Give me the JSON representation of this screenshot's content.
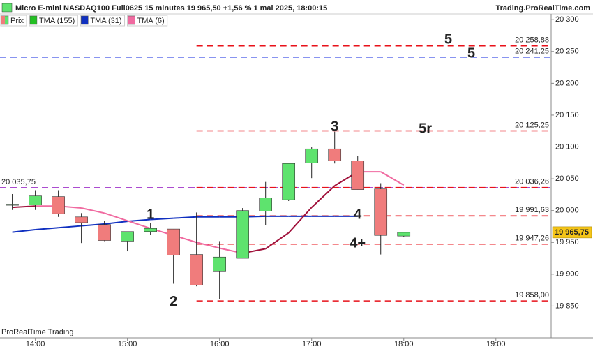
{
  "header": {
    "title": "Micro E-mini NASDAQ100 Full0625 15 minutes 19 965,50 +1,56 % 1 mai 2025, 18:00:15",
    "site": "Trading.ProRealTime.com"
  },
  "watermark": "ProRealTime Trading",
  "chart_data": {
    "type": "candlestick",
    "x": [
      "13:45",
      "14:00",
      "14:15",
      "14:30",
      "14:45",
      "15:00",
      "15:15",
      "15:30",
      "15:45",
      "16:00",
      "16:15",
      "16:30",
      "16:45",
      "17:00",
      "17:15",
      "17:30",
      "17:45",
      "18:00"
    ],
    "xlim": [
      "13:37",
      "19:36"
    ],
    "xticks": [
      "14:00",
      "15:00",
      "16:00",
      "17:00",
      "18:00",
      "19:00"
    ],
    "ylim": [
      19800,
      20309
    ],
    "yticks": [
      {
        "value": 19850,
        "label": "19 850"
      },
      {
        "value": 19900,
        "label": "19 900"
      },
      {
        "value": 19950,
        "label": "19 950"
      },
      {
        "value": 20000,
        "label": "20 000"
      },
      {
        "value": 20050,
        "label": "20 050"
      },
      {
        "value": 20100,
        "label": "20 100"
      },
      {
        "value": 20150,
        "label": "20 150"
      },
      {
        "value": 20200,
        "label": "20 200"
      },
      {
        "value": 20250,
        "label": "20 250"
      },
      {
        "value": 20300,
        "label": "20 300"
      }
    ],
    "series": [
      {
        "name": "Prix",
        "up_color": "#5ee36e",
        "down_color": "#f07c7c",
        "open": [
          20009,
          20009,
          20022,
          19990,
          19978,
          19952,
          19967,
          19971,
          19931,
          19905,
          19925,
          19999,
          20017,
          20075,
          20097,
          20078,
          20034,
          19960
        ],
        "high": [
          20026,
          20032,
          20032,
          19996,
          19984,
          19967,
          19980,
          19971,
          19997,
          19952,
          20004,
          20045,
          20074,
          20100,
          20124,
          20086,
          20043,
          19966.5
        ],
        "low": [
          20001,
          20001,
          19990,
          19949,
          19952,
          19936,
          19962,
          19885,
          19881,
          19861,
          19925,
          19977,
          20015,
          20051,
          20074,
          20033,
          19931,
          19958
        ],
        "close": [
          20010,
          20023,
          19995,
          19981,
          19953,
          19967,
          19972,
          19930,
          19883,
          19927,
          20000,
          20020,
          20074,
          20097,
          20078,
          20033,
          19961,
          19965.75
        ]
      }
    ],
    "indicators": [
      {
        "name": "TMA (155)",
        "color": "#22c022",
        "values": [
          null,
          null,
          null,
          null,
          null,
          null,
          null,
          null,
          null,
          null,
          null,
          null,
          null,
          null,
          null,
          null,
          null,
          null
        ]
      },
      {
        "name": "TMA (31)",
        "color": "#1030c0",
        "values": [
          19966,
          19970,
          19973,
          19976,
          19979,
          19983,
          19986,
          19988,
          19990,
          19990,
          19990,
          19991,
          19991,
          19991,
          19991,
          19991,
          null,
          null
        ]
      },
      {
        "name": "TMA (6)",
        "color": "#f06aa0",
        "rising_color": "#a0103a",
        "values": [
          20005,
          20007,
          20007,
          20004,
          19996,
          19984,
          19972,
          19961,
          19950,
          19941,
          19933,
          19940,
          19965,
          20005,
          20039,
          20061,
          20061,
          20040
        ]
      }
    ],
    "levels": [
      {
        "value": 20258.88,
        "label": "20 258,88",
        "color": "#e8121a",
        "start": "15:45"
      },
      {
        "value": 20241.25,
        "label": "20 241,25",
        "color": "#1028e0"
      },
      {
        "value": 20125.25,
        "label": "20 125,25",
        "color": "#e8121a",
        "start": "15:45"
      },
      {
        "value": 20035.75,
        "label": "20 035,75",
        "color": "#9010c0",
        "label_side": "left"
      },
      {
        "value": 20036.26,
        "label": "20 036,26",
        "color": "#e8121a",
        "start": "15:45"
      },
      {
        "value": 19991.63,
        "label": "19 991,63",
        "color": "#e8121a",
        "start": "15:45"
      },
      {
        "value": 19947.26,
        "label": "19 947,26",
        "color": "#e8121a",
        "start": "15:45"
      },
      {
        "value": 19858.0,
        "label": "19 858,00",
        "color": "#e8121a",
        "start": "15:45"
      }
    ],
    "annotations": [
      {
        "text": "5",
        "x": "18:29",
        "y": 20268,
        "color": "#e83040"
      },
      {
        "text": "5",
        "x": "18:44",
        "y": 20246,
        "color": "#1020d0"
      },
      {
        "text": "5r",
        "x": "18:14",
        "y": 20128,
        "color": "#e83040"
      },
      {
        "text": "3",
        "x": "17:15",
        "y": 20131,
        "color": "#e83040"
      },
      {
        "text": "4",
        "x": "17:30",
        "y": 19993,
        "color": "#e83040"
      },
      {
        "text": "4+",
        "x": "17:30",
        "y": 19948,
        "color": "#e83040"
      },
      {
        "text": "1",
        "x": "15:15",
        "y": 19993,
        "color": "#e83040"
      },
      {
        "text": "2",
        "x": "15:30",
        "y": 19856,
        "color": "#e83040"
      }
    ],
    "last_price": {
      "value": 19965.75,
      "label": "19 965,75",
      "color": "#f5c518"
    }
  }
}
